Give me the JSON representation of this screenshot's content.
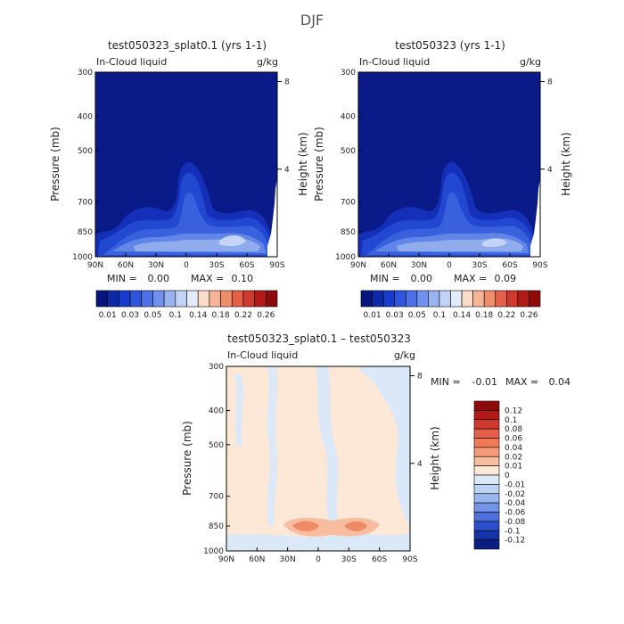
{
  "figure_title": "DJF",
  "chart_data": [
    {
      "type": "heatmap",
      "panel": "top-left",
      "title": "test050323_splat0.1 (yrs 1-1)",
      "variable_label": "In-Cloud liquid",
      "units_label": "g/kg",
      "xlabel": "",
      "ylabel": "Pressure (mb)",
      "y2label": "Height (km)",
      "xticks": [
        "90N",
        "60N",
        "30N",
        "0",
        "30S",
        "60S",
        "90S"
      ],
      "yticks": [
        "300",
        "400",
        "500",
        "700",
        "850",
        "1000"
      ],
      "y2ticks": [
        "8",
        "4"
      ],
      "ylim_mb": [
        1000,
        300
      ],
      "stats": {
        "min_label": "MIN =",
        "min": "0.00",
        "max_label": "MAX =",
        "max": "0.10"
      },
      "colorbar_labels": [
        "0.01",
        "0.03",
        "0.05",
        "0.1",
        "0.14",
        "0.18",
        "0.22",
        "0.26"
      ],
      "colors": [
        "#07167f",
        "#0d2aa6",
        "#1a3ccc",
        "#2f55dd",
        "#4d70e6",
        "#7191ee",
        "#99b2f2",
        "#c3d3f6",
        "#e3ecfb",
        "#fbdcc8",
        "#f6b596",
        "#ef8d6d",
        "#e4604a",
        "#d0392e",
        "#b01b18",
        "#8e0b0b"
      ],
      "colorbar_position": "below"
    },
    {
      "type": "heatmap",
      "panel": "top-right",
      "title": "test050323 (yrs 1-1)",
      "variable_label": "In-Cloud liquid",
      "units_label": "g/kg",
      "xlabel": "",
      "ylabel": "Pressure (mb)",
      "y2label": "Height (km)",
      "xticks": [
        "90N",
        "60N",
        "30N",
        "0",
        "30S",
        "60S",
        "90S"
      ],
      "yticks": [
        "300",
        "400",
        "500",
        "700",
        "850",
        "1000"
      ],
      "y2ticks": [
        "8",
        "4"
      ],
      "ylim_mb": [
        1000,
        300
      ],
      "stats": {
        "min_label": "MIN =",
        "min": "0.00",
        "max_label": "MAX =",
        "max": "0.09"
      },
      "colorbar_labels": [
        "0.01",
        "0.03",
        "0.05",
        "0.1",
        "0.14",
        "0.18",
        "0.22",
        "0.26"
      ],
      "colors": [
        "#07167f",
        "#0d2aa6",
        "#1a3ccc",
        "#2f55dd",
        "#4d70e6",
        "#7191ee",
        "#99b2f2",
        "#c3d3f6",
        "#e3ecfb",
        "#fbdcc8",
        "#f6b596",
        "#ef8d6d",
        "#e4604a",
        "#d0392e",
        "#b01b18",
        "#8e0b0b"
      ],
      "colorbar_position": "below"
    },
    {
      "type": "heatmap",
      "panel": "bottom-center",
      "title": "test050323_splat0.1 – test050323",
      "variable_label": "In-Cloud liquid",
      "units_label": "g/kg",
      "xlabel": "",
      "ylabel": "Pressure (mb)",
      "y2label": "Height (km)",
      "xticks": [
        "90N",
        "60N",
        "30N",
        "0",
        "30S",
        "60S",
        "90S"
      ],
      "yticks": [
        "300",
        "400",
        "500",
        "700",
        "850",
        "1000"
      ],
      "y2ticks": [
        "8",
        "4"
      ],
      "ylim_mb": [
        1000,
        300
      ],
      "stats": {
        "min_label": "MIN =",
        "min": "-0.01",
        "max_label": "MAX =",
        "max": "0.04"
      },
      "colorbar_labels": [
        "0.12",
        "0.1",
        "0.08",
        "0.06",
        "0.04",
        "0.02",
        "0.01",
        "0",
        "-0.01",
        "-0.02",
        "-0.04",
        "-0.06",
        "-0.08",
        "-0.1",
        "-0.12"
      ],
      "colors": [
        "#8e0b0b",
        "#b01b18",
        "#d0392e",
        "#e4604a",
        "#ef7a55",
        "#f49a78",
        "#f8bc9e",
        "#fde7d6",
        "#dbe8f8",
        "#bcd3f3",
        "#99b6ee",
        "#7293e6",
        "#4d70dc",
        "#2c4fcc",
        "#1533a8",
        "#0a1d80"
      ],
      "colorbar_position": "right"
    }
  ]
}
